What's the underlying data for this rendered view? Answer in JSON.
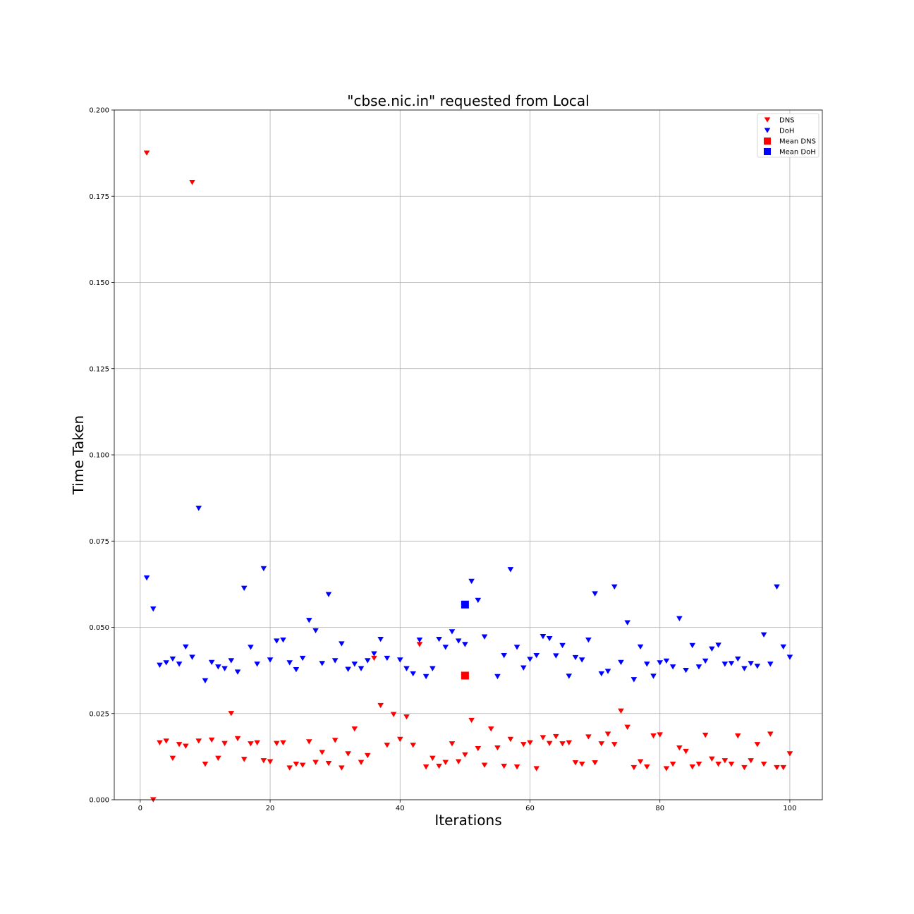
{
  "chart_data": {
    "type": "scatter",
    "title": "\"cbse.nic.in\" requested from Local",
    "xlabel": "Iterations",
    "ylabel": "Time Taken",
    "xlim": [
      -4,
      105
    ],
    "ylim": [
      0.0,
      0.2
    ],
    "x_ticks": [
      0,
      20,
      40,
      60,
      80,
      100
    ],
    "x_tick_labels": [
      "0",
      "20",
      "40",
      "60",
      "80",
      "100"
    ],
    "y_ticks": [
      0.0,
      0.025,
      0.05,
      0.075,
      0.1,
      0.125,
      0.15,
      0.175,
      0.2
    ],
    "y_tick_labels": [
      "0.000",
      "0.025",
      "0.050",
      "0.075",
      "0.100",
      "0.125",
      "0.150",
      "0.175",
      "0.200"
    ],
    "grid": true,
    "legend_position": "top-right",
    "colors": {
      "dns": "#ff0000",
      "doh": "#0000ff"
    },
    "series": [
      {
        "name": "DNS",
        "marker": "triangle-down",
        "color": "#ff0000",
        "x": [
          1,
          2,
          3,
          4,
          5,
          6,
          7,
          8,
          9,
          10,
          11,
          12,
          13,
          14,
          15,
          16,
          17,
          18,
          19,
          20,
          21,
          22,
          23,
          24,
          25,
          26,
          27,
          28,
          29,
          30,
          31,
          32,
          33,
          34,
          35,
          36,
          37,
          38,
          39,
          40,
          41,
          42,
          43,
          44,
          45,
          46,
          47,
          48,
          49,
          50,
          51,
          52,
          53,
          54,
          55,
          56,
          57,
          58,
          59,
          60,
          61,
          62,
          63,
          64,
          65,
          66,
          67,
          68,
          69,
          70,
          71,
          72,
          73,
          74,
          75,
          76,
          77,
          78,
          79,
          80,
          81,
          82,
          83,
          84,
          85,
          86,
          87,
          88,
          89,
          90,
          91,
          92,
          93,
          94,
          95,
          96,
          97,
          98,
          99,
          100
        ],
        "y": [
          0.1875,
          0.0,
          0.0165,
          0.017,
          0.012,
          0.016,
          0.0155,
          0.179,
          0.017,
          0.0103,
          0.0173,
          0.012,
          0.0163,
          0.025,
          0.0177,
          0.0117,
          0.0162,
          0.0165,
          0.0113,
          0.011,
          0.0163,
          0.0165,
          0.0092,
          0.0103,
          0.01,
          0.0168,
          0.0108,
          0.0137,
          0.0105,
          0.0172,
          0.0092,
          0.0133,
          0.0205,
          0.0108,
          0.0128,
          0.041,
          0.0273,
          0.0158,
          0.0247,
          0.0175,
          0.024,
          0.0158,
          0.045,
          0.0095,
          0.012,
          0.0097,
          0.0108,
          0.0162,
          0.011,
          0.013,
          0.023,
          0.0148,
          0.01,
          0.0205,
          0.015,
          0.0097,
          0.0175,
          0.0095,
          0.016,
          0.0165,
          0.009,
          0.018,
          0.0163,
          0.0183,
          0.0162,
          0.0165,
          0.0107,
          0.0103,
          0.0182,
          0.0107,
          0.0162,
          0.019,
          0.016,
          0.0257,
          0.021,
          0.0093,
          0.011,
          0.0095,
          0.0185,
          0.0188,
          0.009,
          0.0103,
          0.015,
          0.014,
          0.0095,
          0.0103,
          0.0187,
          0.0118,
          0.0103,
          0.0113,
          0.0103,
          0.0185,
          0.0093,
          0.0113,
          0.016,
          0.0103,
          0.019,
          0.0093,
          0.0093,
          0.0133
        ]
      },
      {
        "name": "DoH",
        "marker": "triangle-down",
        "color": "#0000ff",
        "x": [
          1,
          2,
          3,
          4,
          5,
          6,
          7,
          8,
          9,
          10,
          11,
          12,
          13,
          14,
          15,
          16,
          17,
          18,
          19,
          20,
          21,
          22,
          23,
          24,
          25,
          26,
          27,
          28,
          29,
          30,
          31,
          32,
          33,
          34,
          35,
          36,
          37,
          38,
          39,
          40,
          41,
          42,
          43,
          44,
          45,
          46,
          47,
          48,
          49,
          50,
          51,
          52,
          53,
          54,
          55,
          56,
          57,
          58,
          59,
          60,
          61,
          62,
          63,
          64,
          65,
          66,
          67,
          68,
          69,
          70,
          71,
          72,
          73,
          74,
          75,
          76,
          77,
          78,
          79,
          80,
          81,
          82,
          83,
          84,
          85,
          86,
          87,
          88,
          89,
          90,
          91,
          92,
          93,
          94,
          95,
          96,
          97,
          98,
          99,
          100
        ],
        "y": [
          0.0643,
          0.0553,
          0.039,
          0.0397,
          0.0408,
          0.0393,
          0.0443,
          0.0413,
          0.0845,
          0.0345,
          0.0398,
          0.0385,
          0.038,
          0.0403,
          0.037,
          0.0613,
          0.0442,
          0.0393,
          0.067,
          0.0405,
          0.046,
          0.0463,
          0.0397,
          0.0377,
          0.041,
          0.052,
          0.049,
          0.0395,
          0.0595,
          0.0403,
          0.0452,
          0.0378,
          0.0393,
          0.038,
          0.0403,
          0.0423,
          0.0465,
          0.041,
          null,
          0.0405,
          0.038,
          0.0365,
          0.0463,
          0.0357,
          0.038,
          0.0465,
          0.0442,
          0.0487,
          0.046,
          0.045,
          0.0633,
          0.0578,
          0.0472,
          null,
          0.0357,
          0.0418,
          0.0667,
          0.0442,
          0.0382,
          0.0407,
          0.0418,
          0.0473,
          0.0467,
          0.0417,
          0.0447,
          0.0358,
          0.0412,
          0.0405,
          0.0463,
          0.0597,
          0.0365,
          0.0372,
          0.0617,
          0.0398,
          0.0513,
          0.0348,
          0.0443,
          0.0393,
          0.0358,
          0.0397,
          0.0402,
          0.0385,
          0.0525,
          0.0375,
          0.0447,
          0.0385,
          0.0402,
          0.0437,
          0.0448,
          0.0393,
          0.0395,
          0.0408,
          0.038,
          0.0395,
          0.0387,
          0.0478,
          0.0393,
          0.0617,
          0.0443,
          0.0413
        ]
      },
      {
        "name": "Mean DNS",
        "marker": "square",
        "color": "#ff0000",
        "x": [
          50
        ],
        "y": [
          0.036
        ]
      },
      {
        "name": "Mean DoH",
        "marker": "square",
        "color": "#0000ff",
        "x": [
          50
        ],
        "y": [
          0.0566
        ]
      }
    ]
  }
}
